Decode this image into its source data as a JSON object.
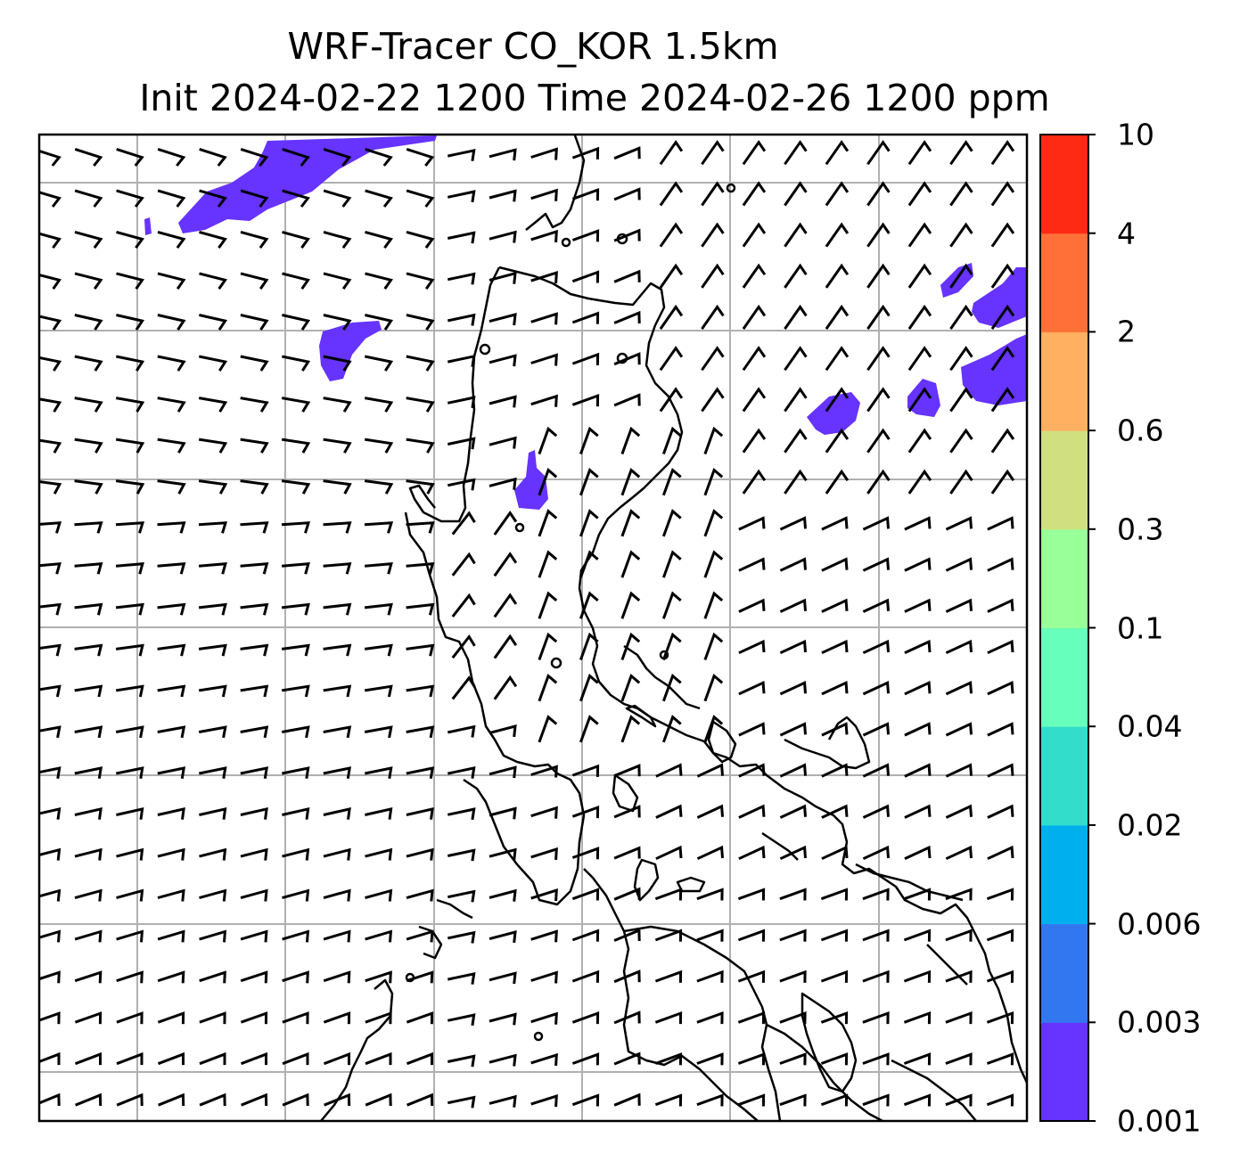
{
  "title_line1": "WRF-Tracer CO_KOR 1.5km",
  "title_line2": "Init 2024-02-22 1200 Time 2024-02-26 1200 ppm",
  "colorbar": {
    "levels": [
      "0.001",
      "0.003",
      "0.006",
      "0.02",
      "0.04",
      "0.1",
      "0.3",
      "0.6",
      "2",
      "4",
      "10"
    ],
    "colors": [
      "#6633ff",
      "#3377f0",
      "#00b0ee",
      "#33ddcc",
      "#66ffbb",
      "#99ff99",
      "#d0e080",
      "#ffb060",
      "#ff7038",
      "#ff2a14"
    ]
  },
  "map": {
    "gridlines": "on",
    "features": [
      "coastline",
      "wind-barbs",
      "co-tracer-shading"
    ],
    "tracer_color": "#6633ff"
  }
}
